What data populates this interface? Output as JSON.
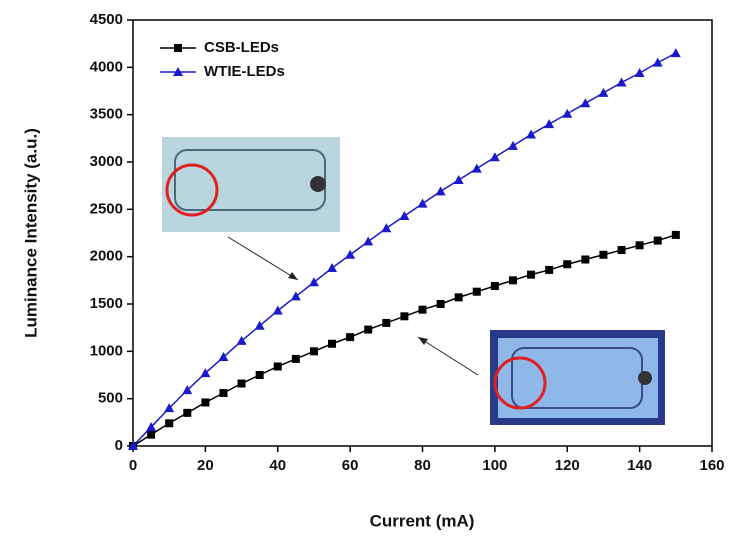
{
  "chart_data": {
    "type": "line",
    "xlabel": "Current (mA)",
    "ylabel": "Luminance Intensity (a.u.)",
    "x": [
      0,
      5,
      10,
      15,
      20,
      25,
      30,
      35,
      40,
      45,
      50,
      55,
      60,
      65,
      70,
      75,
      80,
      85,
      90,
      95,
      100,
      105,
      110,
      115,
      120,
      125,
      130,
      135,
      140,
      145,
      150
    ],
    "series": [
      {
        "name": "CSB-LEDs",
        "color": "#000000",
        "marker": "square",
        "values": [
          0,
          120,
          240,
          350,
          460,
          560,
          660,
          750,
          840,
          920,
          1000,
          1080,
          1150,
          1230,
          1300,
          1370,
          1440,
          1500,
          1570,
          1630,
          1690,
          1750,
          1810,
          1860,
          1920,
          1970,
          2020,
          2070,
          2120,
          2170,
          2230
        ]
      },
      {
        "name": "WTIE-LEDs",
        "color": "#1a1acc",
        "marker": "triangle",
        "values": [
          0,
          200,
          400,
          590,
          770,
          940,
          1110,
          1270,
          1430,
          1580,
          1730,
          1880,
          2020,
          2160,
          2300,
          2430,
          2560,
          2690,
          2810,
          2930,
          3050,
          3170,
          3290,
          3400,
          3510,
          3620,
          3730,
          3840,
          3940,
          4050,
          4150
        ]
      }
    ],
    "xlim": [
      0,
      160
    ],
    "xticks": [
      0,
      20,
      40,
      60,
      80,
      100,
      120,
      140,
      160
    ],
    "ylim": [
      0,
      4500
    ],
    "yticks": [
      0,
      500,
      1000,
      1500,
      2000,
      2500,
      3000,
      3500,
      4000,
      4500
    ],
    "legend": "upper left"
  }
}
